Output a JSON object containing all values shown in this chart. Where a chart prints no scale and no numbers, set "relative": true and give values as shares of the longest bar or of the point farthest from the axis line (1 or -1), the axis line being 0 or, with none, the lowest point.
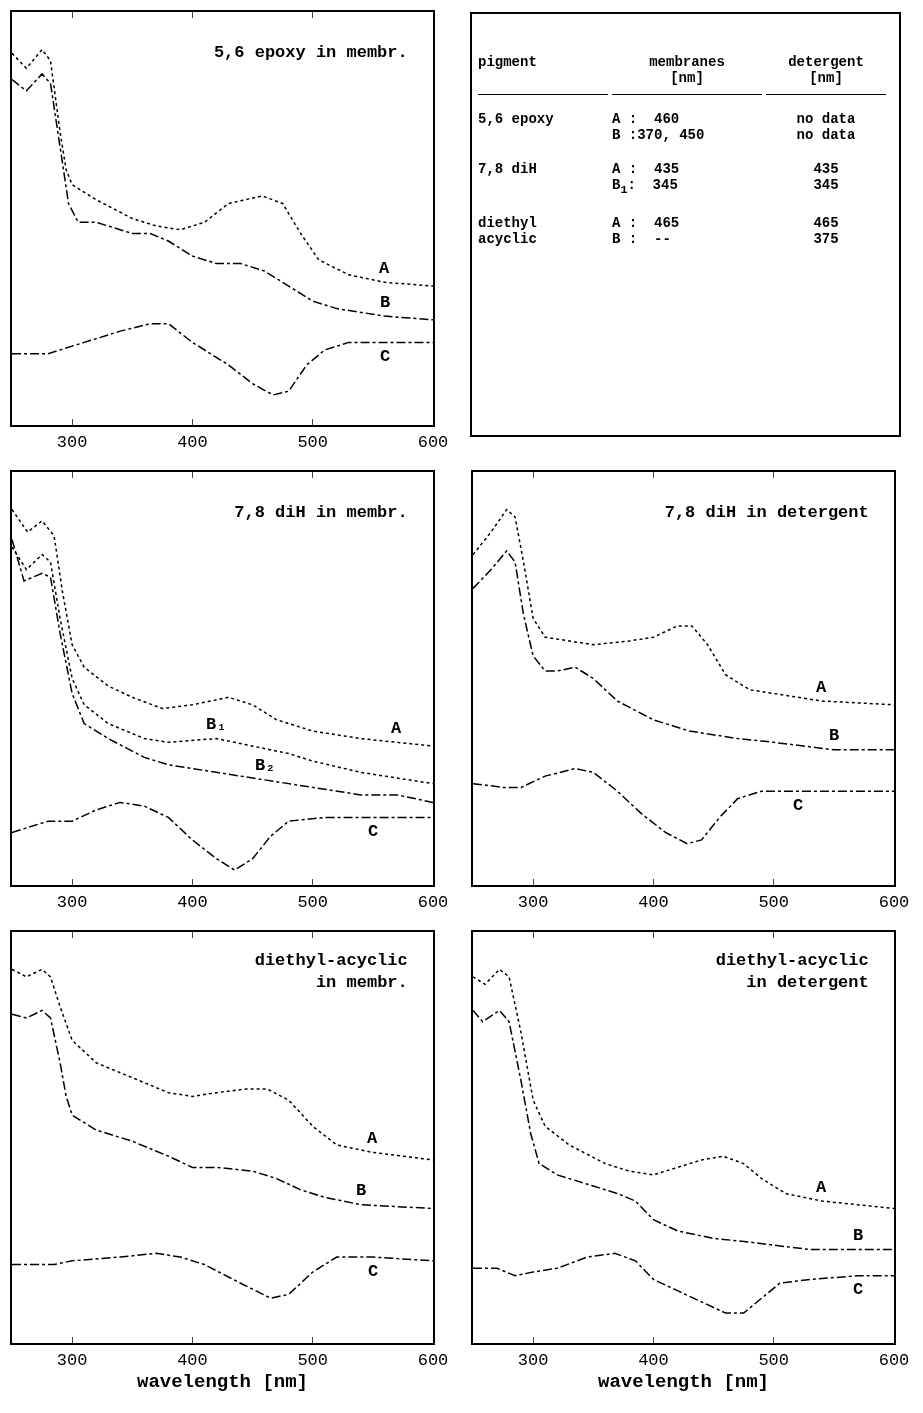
{
  "chart_data": [
    {
      "type": "line",
      "relative": true,
      "title": "5,6 epoxy in membr.",
      "xlim": [
        250,
        600
      ],
      "xticks": [
        300,
        400,
        500,
        600
      ],
      "tick_labels": "x",
      "grid": false,
      "legend": false,
      "series": [
        {
          "name": "A",
          "color": "#000000",
          "line_style": "dotted",
          "x": [
            250,
            262,
            275,
            282,
            290,
            295,
            300,
            320,
            350,
            370,
            390,
            410,
            430,
            458,
            475,
            490,
            505,
            530,
            560,
            600
          ],
          "values": [
            0.99,
            0.95,
            1.0,
            0.97,
            0.78,
            0.68,
            0.64,
            0.6,
            0.55,
            0.53,
            0.52,
            0.54,
            0.59,
            0.61,
            0.59,
            0.51,
            0.44,
            0.4,
            0.38,
            0.37
          ]
        },
        {
          "name": "B",
          "color": "#000000",
          "line_style": "dashed",
          "x": [
            250,
            262,
            275,
            282,
            290,
            297,
            305,
            320,
            350,
            365,
            380,
            400,
            420,
            440,
            460,
            480,
            500,
            520,
            560,
            600
          ],
          "values": [
            0.92,
            0.89,
            0.935,
            0.91,
            0.74,
            0.59,
            0.54,
            0.54,
            0.51,
            0.51,
            0.49,
            0.45,
            0.43,
            0.43,
            0.41,
            0.37,
            0.33,
            0.31,
            0.29,
            0.28
          ]
        },
        {
          "name": "C",
          "color": "#000000",
          "line_style": "dashed",
          "x": [
            250,
            280,
            310,
            340,
            365,
            380,
            400,
            430,
            450,
            467,
            480,
            495,
            510,
            530,
            560,
            600
          ],
          "values": [
            0.19,
            0.19,
            0.22,
            0.25,
            0.27,
            0.27,
            0.22,
            0.16,
            0.11,
            0.08,
            0.09,
            0.16,
            0.2,
            0.22,
            0.22,
            0.22
          ]
        }
      ]
    },
    {
      "type": "other",
      "annotations": [
        "pigment",
        "membranes [nm]",
        "detergent [nm]",
        "5,6 epoxy",
        "A :  460\nB :370, 450",
        "no data\nno data",
        "7,8 diH",
        "A :  435\nB$_{1}$:  345",
        "435\n345",
        "diethyl\nacyclic",
        "A :  465\nB :  --",
        "465\n375"
      ]
    },
    {
      "type": "line",
      "relative": true,
      "title": "7,8 diH in membr.",
      "xlim": [
        250,
        600
      ],
      "xticks": [
        300,
        400,
        500,
        600
      ],
      "tick_labels": "x",
      "grid": false,
      "legend": false,
      "series": [
        {
          "name": "A",
          "color": "#000000",
          "line_style": "dotted",
          "x": [
            250,
            263,
            275,
            285,
            292,
            300,
            310,
            330,
            350,
            375,
            400,
            430,
            450,
            470,
            500,
            540,
            570,
            600
          ],
          "values": [
            1.0,
            0.94,
            0.97,
            0.93,
            0.78,
            0.64,
            0.58,
            0.53,
            0.5,
            0.47,
            0.48,
            0.5,
            0.48,
            0.44,
            0.41,
            0.39,
            0.38,
            0.37
          ]
        },
        {
          "name": "B₁",
          "color": "#000000",
          "line_style": "dotted",
          "x": [
            250,
            262,
            275,
            282,
            290,
            300,
            310,
            330,
            360,
            380,
            420,
            450,
            480,
            500,
            540,
            600
          ],
          "values": [
            0.9,
            0.84,
            0.88,
            0.86,
            0.71,
            0.55,
            0.48,
            0.43,
            0.39,
            0.38,
            0.39,
            0.37,
            0.35,
            0.33,
            0.3,
            0.27
          ]
        },
        {
          "name": "B₂",
          "color": "#000000",
          "line_style": "dashed",
          "x": [
            250,
            260,
            275,
            282,
            290,
            300,
            310,
            330,
            360,
            380,
            420,
            460,
            500,
            540,
            570,
            600
          ],
          "values": [
            0.92,
            0.81,
            0.83,
            0.82,
            0.67,
            0.51,
            0.43,
            0.39,
            0.34,
            0.32,
            0.3,
            0.28,
            0.26,
            0.24,
            0.24,
            0.22
          ]
        },
        {
          "name": "C",
          "color": "#000000",
          "line_style": "dashed",
          "x": [
            250,
            280,
            300,
            320,
            340,
            360,
            380,
            400,
            420,
            435,
            450,
            465,
            480,
            510,
            550,
            600
          ],
          "values": [
            0.14,
            0.17,
            0.17,
            0.2,
            0.22,
            0.21,
            0.18,
            0.12,
            0.07,
            0.04,
            0.07,
            0.13,
            0.17,
            0.18,
            0.18,
            0.18
          ]
        }
      ]
    },
    {
      "type": "line",
      "relative": true,
      "title": "7,8 diH in detergent",
      "xlim": [
        250,
        600
      ],
      "xticks": [
        300,
        400,
        500,
        600
      ],
      "tick_labels": "x",
      "grid": false,
      "legend": false,
      "series": [
        {
          "name": "A",
          "color": "#000000",
          "line_style": "dotted",
          "x": [
            250,
            265,
            278,
            285,
            292,
            300,
            310,
            330,
            350,
            380,
            400,
            420,
            432,
            445,
            460,
            480,
            500,
            540,
            600
          ],
          "values": [
            0.88,
            0.94,
            1.0,
            0.98,
            0.86,
            0.71,
            0.66,
            0.65,
            0.64,
            0.65,
            0.66,
            0.69,
            0.69,
            0.64,
            0.56,
            0.52,
            0.51,
            0.49,
            0.48
          ]
        },
        {
          "name": "B",
          "color": "#000000",
          "line_style": "dashed",
          "x": [
            250,
            265,
            278,
            285,
            292,
            300,
            310,
            320,
            335,
            350,
            370,
            400,
            430,
            470,
            500,
            550,
            600
          ],
          "values": [
            0.79,
            0.84,
            0.89,
            0.86,
            0.72,
            0.61,
            0.57,
            0.57,
            0.58,
            0.55,
            0.49,
            0.44,
            0.41,
            0.39,
            0.38,
            0.36,
            0.36
          ]
        },
        {
          "name": "C",
          "color": "#000000",
          "line_style": "dashed",
          "x": [
            250,
            275,
            290,
            310,
            335,
            350,
            370,
            390,
            410,
            428,
            440,
            455,
            470,
            490,
            520,
            600
          ],
          "values": [
            0.27,
            0.26,
            0.26,
            0.29,
            0.31,
            0.3,
            0.25,
            0.19,
            0.14,
            0.11,
            0.12,
            0.18,
            0.23,
            0.25,
            0.25,
            0.25
          ]
        }
      ]
    },
    {
      "type": "line",
      "relative": true,
      "title": "diethyl-acyclic\n    in membr.",
      "xlabel": "wavelength [nm]",
      "xlim": [
        250,
        600
      ],
      "xticks": [
        300,
        400,
        500,
        600
      ],
      "tick_labels": "x",
      "grid": false,
      "legend": false,
      "series": [
        {
          "name": "A",
          "color": "#000000",
          "line_style": "dotted",
          "x": [
            250,
            262,
            275,
            282,
            290,
            300,
            320,
            350,
            380,
            400,
            420,
            445,
            462,
            480,
            500,
            520,
            550,
            600
          ],
          "values": [
            1.0,
            0.98,
            1.0,
            0.98,
            0.9,
            0.81,
            0.75,
            0.71,
            0.67,
            0.66,
            0.67,
            0.68,
            0.68,
            0.65,
            0.58,
            0.53,
            0.51,
            0.49
          ]
        },
        {
          "name": "B",
          "color": "#000000",
          "line_style": "dashed",
          "x": [
            250,
            262,
            275,
            282,
            290,
            295,
            300,
            320,
            350,
            380,
            400,
            420,
            450,
            470,
            490,
            510,
            540,
            600
          ],
          "values": [
            0.88,
            0.87,
            0.89,
            0.87,
            0.75,
            0.66,
            0.61,
            0.57,
            0.54,
            0.5,
            0.47,
            0.47,
            0.46,
            0.44,
            0.41,
            0.39,
            0.37,
            0.36
          ]
        },
        {
          "name": "C",
          "color": "#000000",
          "line_style": "dashed",
          "x": [
            250,
            270,
            285,
            300,
            340,
            370,
            390,
            410,
            440,
            465,
            480,
            500,
            520,
            550,
            600
          ],
          "values": [
            0.21,
            0.21,
            0.21,
            0.22,
            0.23,
            0.24,
            0.23,
            0.21,
            0.16,
            0.12,
            0.13,
            0.19,
            0.23,
            0.23,
            0.22
          ]
        }
      ]
    },
    {
      "type": "line",
      "relative": true,
      "title": "diethyl-acyclic\n    in detergent",
      "xlabel": "wavelength [nm]",
      "xlim": [
        250,
        600
      ],
      "xticks": [
        300,
        400,
        500,
        600
      ],
      "tick_labels": "x",
      "grid": false,
      "legend": false,
      "series": [
        {
          "name": "A",
          "color": "#000000",
          "line_style": "dotted",
          "x": [
            250,
            260,
            272,
            280,
            290,
            300,
            310,
            330,
            360,
            380,
            400,
            420,
            440,
            458,
            475,
            490,
            510,
            540,
            600
          ],
          "values": [
            0.98,
            0.96,
            1.0,
            0.98,
            0.83,
            0.65,
            0.58,
            0.53,
            0.48,
            0.46,
            0.45,
            0.47,
            0.49,
            0.5,
            0.48,
            0.44,
            0.4,
            0.38,
            0.36
          ]
        },
        {
          "name": "B",
          "color": "#000000",
          "line_style": "dashed",
          "x": [
            250,
            258,
            272,
            280,
            290,
            298,
            305,
            320,
            350,
            370,
            385,
            400,
            420,
            450,
            480,
            530,
            570,
            600
          ],
          "values": [
            0.89,
            0.86,
            0.89,
            0.86,
            0.7,
            0.56,
            0.48,
            0.45,
            0.42,
            0.4,
            0.38,
            0.33,
            0.3,
            0.28,
            0.27,
            0.25,
            0.25,
            0.25
          ]
        },
        {
          "name": "C",
          "color": "#000000",
          "line_style": "dashed",
          "x": [
            250,
            270,
            285,
            300,
            320,
            345,
            368,
            385,
            400,
            420,
            440,
            460,
            475,
            490,
            505,
            530,
            570,
            600
          ],
          "values": [
            0.2,
            0.2,
            0.18,
            0.19,
            0.2,
            0.23,
            0.24,
            0.22,
            0.17,
            0.14,
            0.11,
            0.08,
            0.08,
            0.12,
            0.16,
            0.17,
            0.18,
            0.18
          ]
        }
      ]
    }
  ]
}
